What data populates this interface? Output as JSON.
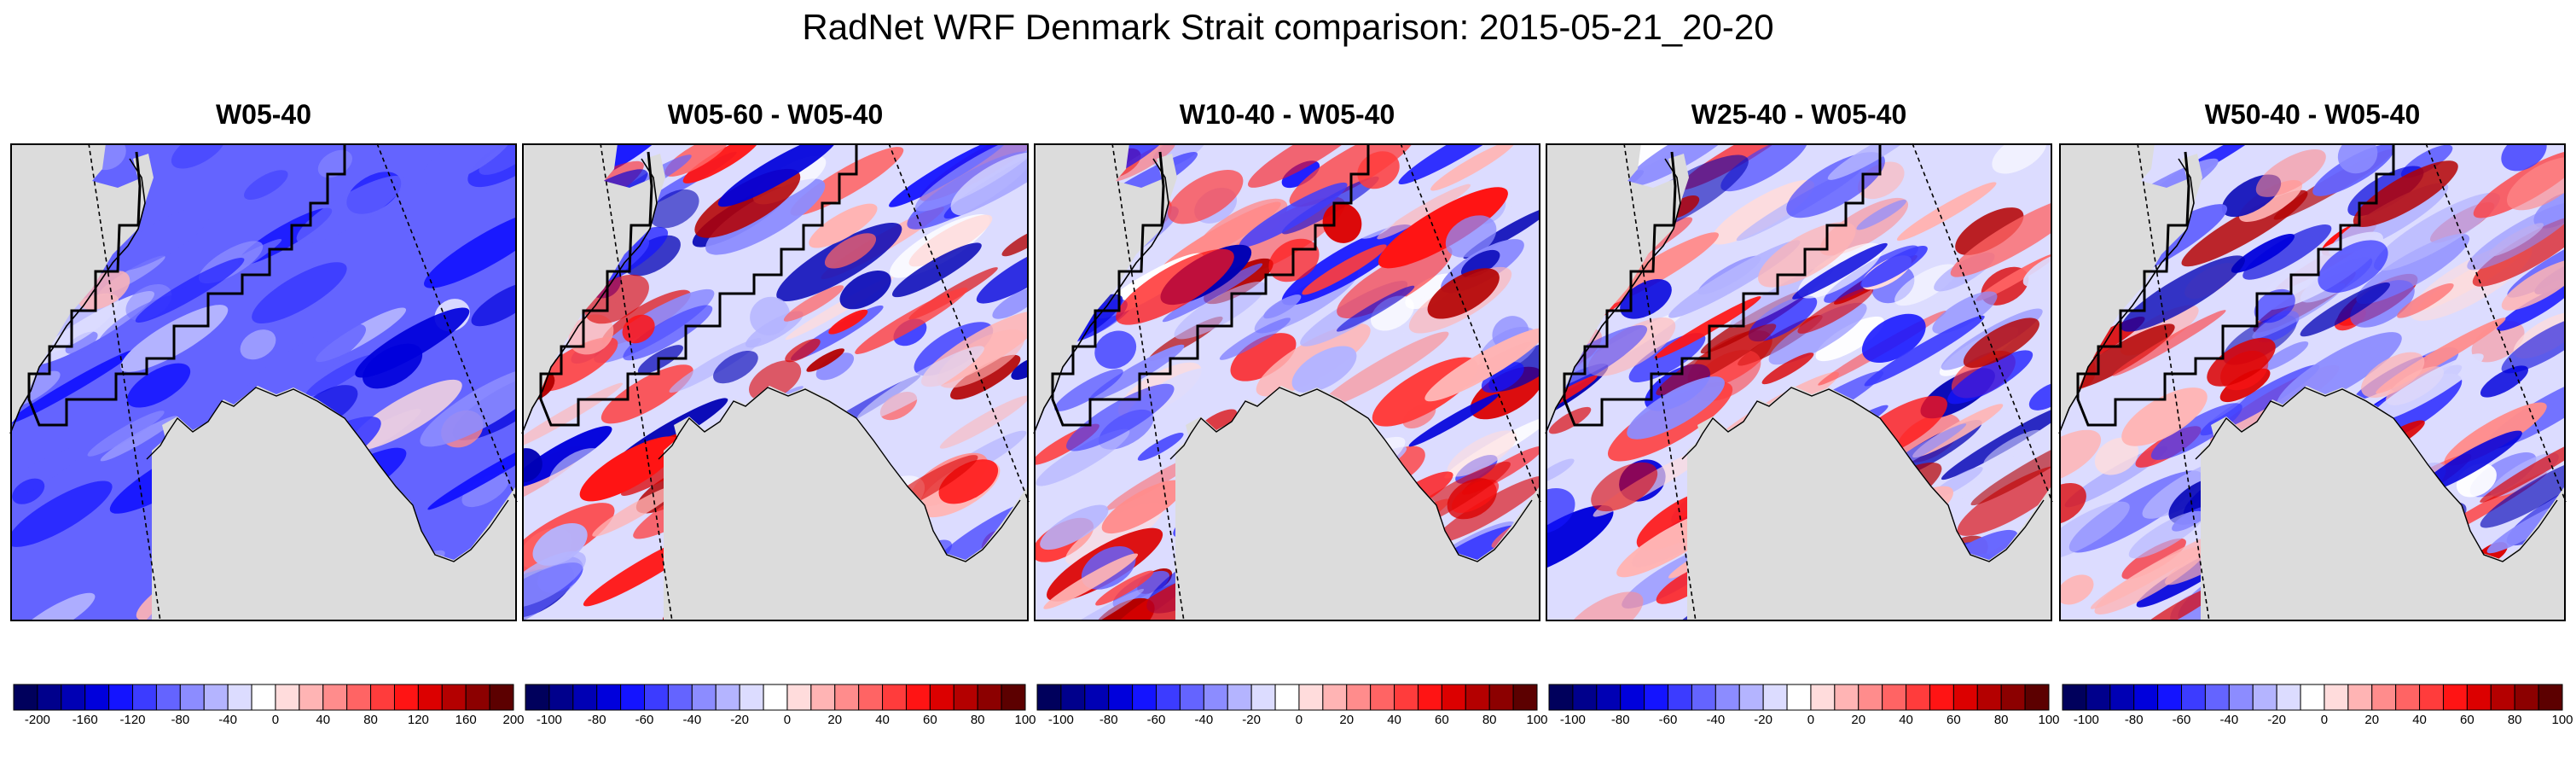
{
  "figure": {
    "title": "RadNet WRF Denmark Strait comparison: 2015-05-21_20-20"
  },
  "colors": {
    "land": "#dcdcdc",
    "diverging": [
      "#00005c",
      "#00008c",
      "#0000b4",
      "#0000dc",
      "#1414ff",
      "#3c3cff",
      "#6464ff",
      "#8c8cff",
      "#b4b4ff",
      "#dcdcff",
      "#ffffff",
      "#ffdcdc",
      "#ffb4b4",
      "#ff8c8c",
      "#ff6464",
      "#ff3c3c",
      "#ff1414",
      "#dc0000",
      "#b40000",
      "#8c0000",
      "#5c0000"
    ]
  },
  "panels": [
    {
      "title": "W05-40",
      "colorbar_ticks": [
        "-200",
        "-160",
        "-120",
        "-80",
        "-40",
        "0",
        "40",
        "80",
        "120",
        "160",
        "200"
      ],
      "dominant": "blue"
    },
    {
      "title": "W05-60 - W05-40",
      "colorbar_ticks": [
        "-100",
        "-80",
        "-60",
        "-40",
        "-20",
        "0",
        "20",
        "40",
        "60",
        "80",
        "100"
      ],
      "dominant": "mixed"
    },
    {
      "title": "W10-40 - W05-40",
      "colorbar_ticks": [
        "-100",
        "-80",
        "-60",
        "-40",
        "-20",
        "0",
        "20",
        "40",
        "60",
        "80",
        "100"
      ],
      "dominant": "mixed"
    },
    {
      "title": "W25-40 - W05-40",
      "colorbar_ticks": [
        "-100",
        "-80",
        "-60",
        "-40",
        "-20",
        "0",
        "20",
        "40",
        "60",
        "80",
        "100"
      ],
      "dominant": "mixed"
    },
    {
      "title": "W50-40 - W05-40",
      "colorbar_ticks": [
        "-100",
        "-80",
        "-60",
        "-40",
        "-20",
        "0",
        "20",
        "40",
        "60",
        "80",
        "100"
      ],
      "dominant": "mixed"
    }
  ]
}
